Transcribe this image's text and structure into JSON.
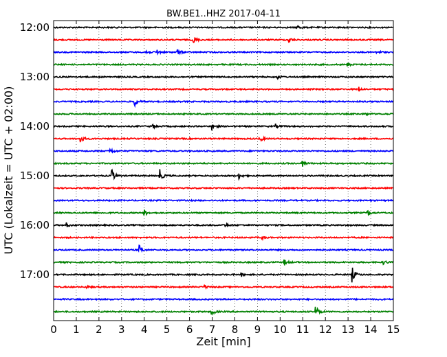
{
  "chart_data": {
    "type": "line",
    "title": "BW.BE1..HHZ 2017-04-11",
    "xlabel": "Zeit  [min]",
    "ylabel": "UTC (Lokalzeit = UTC + 02:00)",
    "xlim": [
      0,
      15
    ],
    "x_ticks": [
      "0",
      "1",
      "2",
      "3",
      "4",
      "5",
      "6",
      "7",
      "8",
      "9",
      "10",
      "11",
      "12",
      "13",
      "14",
      "15"
    ],
    "y_tick_labels": [
      "12:00",
      "13:00",
      "14:00",
      "15:00",
      "16:00",
      "17:00"
    ],
    "trace_interval_minutes": 15,
    "grid": "vertical dotted at each minute",
    "series": [
      {
        "start": "12:00",
        "color": "#000000",
        "events": [
          [
            10.8,
            2
          ]
        ]
      },
      {
        "start": "12:15",
        "color": "#ff0000",
        "events": [
          [
            6.2,
            4
          ],
          [
            10.4,
            3
          ]
        ]
      },
      {
        "start": "12:30",
        "color": "#0000ff",
        "events": [
          [
            4.1,
            2.5
          ],
          [
            4.6,
            2.5
          ],
          [
            5.5,
            3
          ],
          [
            14.3,
            2
          ]
        ]
      },
      {
        "start": "12:45",
        "color": "#008000",
        "events": [
          [
            13.0,
            1.5
          ]
        ]
      },
      {
        "start": "13:00",
        "color": "#000000",
        "events": [
          [
            9.9,
            1.5
          ]
        ]
      },
      {
        "start": "13:15",
        "color": "#ff0000",
        "events": [
          [
            13.5,
            2
          ]
        ]
      },
      {
        "start": "13:30",
        "color": "#0000ff",
        "events": [
          [
            3.6,
            4
          ]
        ]
      },
      {
        "start": "13:45",
        "color": "#008000",
        "events": [
          [
            13.8,
            1
          ]
        ]
      },
      {
        "start": "14:00",
        "color": "#000000",
        "events": [
          [
            4.4,
            2
          ],
          [
            7.0,
            4
          ],
          [
            9.8,
            2
          ]
        ]
      },
      {
        "start": "14:15",
        "color": "#ff0000",
        "events": [
          [
            1.2,
            5
          ],
          [
            9.1,
            4
          ]
        ]
      },
      {
        "start": "14:30",
        "color": "#0000ff",
        "events": [
          [
            2.5,
            4
          ]
        ]
      },
      {
        "start": "14:45",
        "color": "#008000",
        "events": [
          [
            11.0,
            3
          ]
        ]
      },
      {
        "start": "15:00",
        "color": "#000000",
        "events": [
          [
            2.6,
            6
          ],
          [
            4.7,
            6
          ],
          [
            8.2,
            3
          ]
        ]
      },
      {
        "start": "15:15",
        "color": "#ff0000",
        "events": []
      },
      {
        "start": "15:30",
        "color": "#0000ff",
        "events": []
      },
      {
        "start": "15:45",
        "color": "#008000",
        "events": [
          [
            4.0,
            4
          ],
          [
            13.9,
            2.5
          ]
        ]
      },
      {
        "start": "16:00",
        "color": "#000000",
        "events": [
          [
            0.6,
            2
          ],
          [
            7.6,
            2
          ]
        ]
      },
      {
        "start": "16:15",
        "color": "#ff0000",
        "events": [
          [
            9.2,
            2
          ]
        ]
      },
      {
        "start": "16:30",
        "color": "#0000ff",
        "events": [
          [
            3.8,
            4
          ]
        ]
      },
      {
        "start": "16:45",
        "color": "#008000",
        "events": [
          [
            10.2,
            3
          ],
          [
            14.6,
            2
          ]
        ]
      },
      {
        "start": "17:00",
        "color": "#000000",
        "events": [
          [
            8.3,
            1.5
          ],
          [
            13.2,
            7
          ]
        ]
      },
      {
        "start": "17:15",
        "color": "#ff0000",
        "events": [
          [
            1.5,
            1
          ],
          [
            6.7,
            2
          ]
        ]
      },
      {
        "start": "17:30",
        "color": "#0000ff",
        "events": []
      },
      {
        "start": "17:45",
        "color": "#008000",
        "events": [
          [
            7.0,
            4
          ],
          [
            11.6,
            6
          ]
        ]
      }
    ]
  }
}
